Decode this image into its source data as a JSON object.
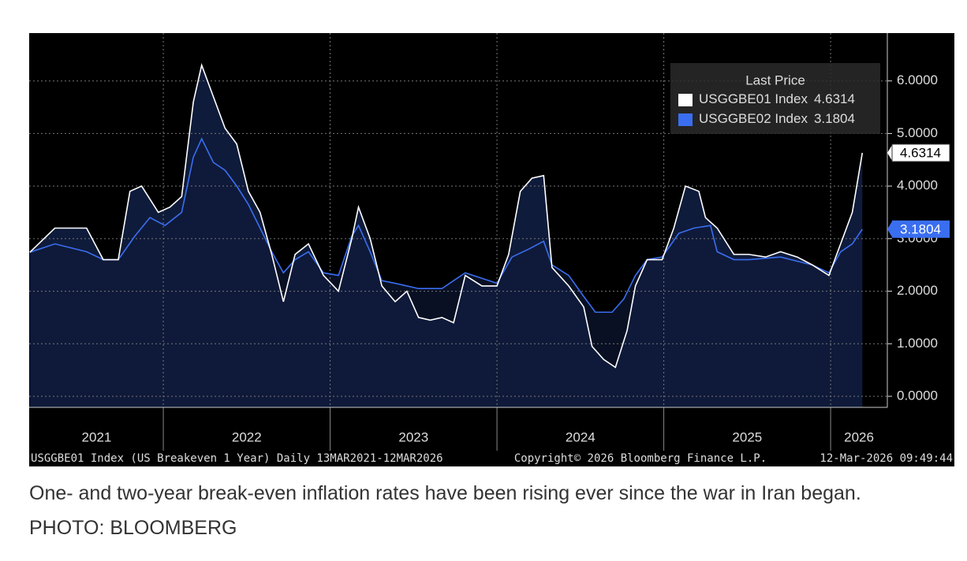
{
  "chart_data": {
    "type": "line",
    "legend_title": "Last Price",
    "footer_left": "USGGBE01 Index (US Breakeven 1 Year) Daily 13MAR2021-12MAR2026",
    "footer_center": "Copyright© 2026 Bloomberg Finance L.P.",
    "footer_right": "12-Mar-2026 09:49:44",
    "xlim": [
      2021.196,
      2026.34
    ],
    "ylim": [
      -0.21,
      6.91
    ],
    "yticks": [
      {
        "value": 0,
        "label": "0.0000"
      },
      {
        "value": 1,
        "label": "1.0000"
      },
      {
        "value": 2,
        "label": "2.0000"
      },
      {
        "value": 3,
        "label": "3.0000"
      },
      {
        "value": 4,
        "label": "4.0000"
      },
      {
        "value": 5,
        "label": "5.0000"
      },
      {
        "value": 6,
        "label": "6.0000"
      }
    ],
    "xticks": [
      2022,
      2023,
      2024,
      2025,
      2026
    ],
    "year_labels": [
      {
        "value": 2021.6,
        "label": "2021"
      },
      {
        "value": 2022.5,
        "label": "2022"
      },
      {
        "value": 2023.5,
        "label": "2023"
      },
      {
        "value": 2024.5,
        "label": "2024"
      },
      {
        "value": 2025.5,
        "label": "2025"
      },
      {
        "value": 2026.17,
        "label": "2026"
      }
    ],
    "grid": true,
    "series": [
      {
        "name": "USGGBE01 Index",
        "color": "#ffffff",
        "x": [
          2021.2,
          2021.35,
          2021.45,
          2021.54,
          2021.64,
          2021.73,
          2021.8,
          2021.87,
          2021.97,
          2022.04,
          2022.11,
          2022.18,
          2022.23,
          2022.3,
          2022.37,
          2022.44,
          2022.51,
          2022.58,
          2022.65,
          2022.72,
          2022.79,
          2022.87,
          2022.96,
          2023.05,
          2023.13,
          2023.17,
          2023.24,
          2023.31,
          2023.39,
          2023.46,
          2023.53,
          2023.6,
          2023.67,
          2023.74,
          2023.81,
          2023.91,
          2024.0,
          2024.07,
          2024.14,
          2024.21,
          2024.28,
          2024.33,
          2024.43,
          2024.52,
          2024.57,
          2024.64,
          2024.71,
          2024.78,
          2024.83,
          2024.9,
          2024.99,
          2025.06,
          2025.13,
          2025.21,
          2025.25,
          2025.32,
          2025.42,
          2025.51,
          2025.61,
          2025.7,
          2025.8,
          2025.89,
          2025.99,
          2026.06,
          2026.13,
          2026.19
        ],
        "values": [
          2.74,
          3.2,
          3.2,
          3.2,
          2.6,
          2.6,
          3.9,
          4.0,
          3.5,
          3.6,
          3.8,
          5.6,
          6.3,
          5.7,
          5.1,
          4.8,
          3.9,
          3.5,
          2.7,
          1.8,
          2.7,
          2.9,
          2.3,
          2.0,
          3.0,
          3.6,
          3.0,
          2.1,
          1.8,
          2.0,
          1.5,
          1.45,
          1.5,
          1.4,
          2.3,
          2.1,
          2.1,
          2.7,
          3.9,
          4.15,
          4.2,
          2.45,
          2.1,
          1.7,
          0.95,
          0.7,
          0.55,
          1.25,
          2.1,
          2.6,
          2.6,
          3.2,
          4.0,
          3.9,
          3.4,
          3.2,
          2.7,
          2.7,
          2.65,
          2.75,
          2.65,
          2.5,
          2.3,
          2.9,
          3.5,
          4.6314
        ]
      },
      {
        "name": "USGGBE02 Index",
        "color": "#3a6ef0",
        "x": [
          2021.2,
          2021.35,
          2021.54,
          2021.64,
          2021.73,
          2021.83,
          2021.92,
          2022.01,
          2022.11,
          2022.18,
          2022.23,
          2022.3,
          2022.37,
          2022.44,
          2022.51,
          2022.58,
          2022.65,
          2022.72,
          2022.79,
          2022.87,
          2022.96,
          2023.05,
          2023.13,
          2023.17,
          2023.24,
          2023.31,
          2023.39,
          2023.53,
          2023.67,
          2023.74,
          2023.81,
          2024.0,
          2024.09,
          2024.19,
          2024.28,
          2024.33,
          2024.43,
          2024.52,
          2024.59,
          2024.69,
          2024.76,
          2024.83,
          2024.9,
          2024.99,
          2025.09,
          2025.18,
          2025.28,
          2025.32,
          2025.42,
          2025.51,
          2025.7,
          2025.89,
          2025.99,
          2026.06,
          2026.13,
          2026.19
        ],
        "values": [
          2.74,
          2.9,
          2.75,
          2.6,
          2.6,
          3.05,
          3.4,
          3.25,
          3.5,
          4.55,
          4.9,
          4.45,
          4.3,
          4.0,
          3.65,
          3.2,
          2.75,
          2.35,
          2.6,
          2.75,
          2.35,
          2.3,
          3.05,
          3.25,
          2.75,
          2.2,
          2.15,
          2.05,
          2.05,
          2.2,
          2.35,
          2.15,
          2.65,
          2.8,
          2.95,
          2.5,
          2.3,
          1.9,
          1.6,
          1.6,
          1.85,
          2.3,
          2.6,
          2.65,
          3.1,
          3.2,
          3.25,
          2.75,
          2.6,
          2.6,
          2.65,
          2.5,
          2.35,
          2.75,
          2.9,
          3.1804
        ]
      }
    ]
  },
  "caption": "One- and two-year break-even inflation rates have been rising ever since the war in Iran began.",
  "credit": "PHOTO: BLOOMBERG"
}
